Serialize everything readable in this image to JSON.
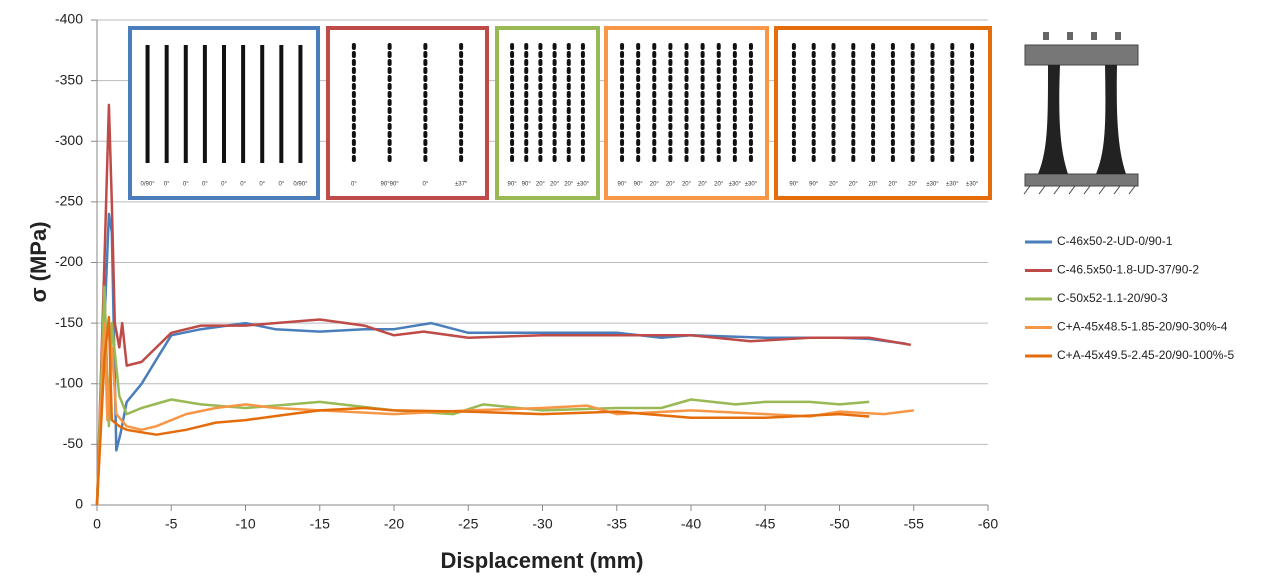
{
  "chart_data": {
    "type": "line",
    "xlabel": "Displacement (mm)",
    "ylabel": "σ  (MPa)",
    "xlim": [
      0,
      -60
    ],
    "ylim": [
      0,
      -400
    ],
    "xticks": [
      0,
      -5,
      -10,
      -15,
      -20,
      -25,
      -30,
      -35,
      -40,
      -45,
      -50,
      -55,
      -60
    ],
    "yticks": [
      0,
      -50,
      -100,
      -150,
      -200,
      -250,
      -300,
      -350,
      -400
    ],
    "grid": true,
    "legend": "right",
    "series": [
      {
        "name": "C-46x50-2-UD-0/90-1",
        "color": "#4a7ebb",
        "x": [
          0,
          -0.5,
          -0.8,
          -1,
          -1.3,
          -1.6,
          -2,
          -3,
          -4,
          -5,
          -7,
          -10,
          -12,
          -15,
          -18,
          -20,
          -22.5,
          -25,
          -30,
          -35,
          -38,
          -40,
          -45,
          -50,
          -52,
          -54.5
        ],
        "values": [
          0,
          -150,
          -240,
          -225,
          -45,
          -60,
          -85,
          -100,
          -120,
          -140,
          -145,
          -150,
          -145,
          -143,
          -145,
          -145,
          -150,
          -142,
          -142,
          -142,
          -138,
          -140,
          -138,
          -138,
          -137,
          -133
        ]
      },
      {
        "name": "C-46.5x50-1.8-UD-37/90-2",
        "color": "#be4b48",
        "x": [
          0,
          -0.5,
          -0.8,
          -1,
          -1.2,
          -1.5,
          -1.7,
          -2,
          -3,
          -4,
          -5,
          -7,
          -10,
          -12,
          -15,
          -18,
          -20,
          -22,
          -25,
          -30,
          -35,
          -40,
          -44,
          -48,
          -52,
          -54.8
        ],
        "values": [
          0,
          -200,
          -330,
          -250,
          -150,
          -130,
          -150,
          -115,
          -118,
          -130,
          -142,
          -148,
          -148,
          -150,
          -153,
          -148,
          -140,
          -143,
          -138,
          -140,
          -140,
          -140,
          -135,
          -138,
          -138,
          -132
        ]
      },
      {
        "name": "C-50x52-1.1-20/90-3",
        "color": "#98b954",
        "x": [
          0,
          -0.5,
          -0.8,
          -1,
          -1.5,
          -2,
          -3,
          -5,
          -7,
          -10,
          -12,
          -15,
          -20,
          -24,
          -26,
          -30,
          -35,
          -38,
          -40,
          -43,
          -45,
          -48,
          -50,
          -52
        ],
        "values": [
          0,
          -180,
          -65,
          -150,
          -90,
          -75,
          -80,
          -87,
          -83,
          -80,
          -82,
          -85,
          -78,
          -75,
          -83,
          -78,
          -80,
          -80,
          -87,
          -83,
          -85,
          -85,
          -83,
          -85
        ]
      },
      {
        "name": "C+A-45x48.5-1.85-20/90-30%-4",
        "color": "#f79646",
        "x": [
          0,
          -0.5,
          -0.7,
          -1,
          -1.3,
          -2,
          -3,
          -4,
          -6,
          -8,
          -10,
          -12,
          -15,
          -20,
          -25,
          -30,
          -33,
          -35,
          -40,
          -45,
          -48,
          -50,
          -53,
          -55
        ],
        "values": [
          0,
          -150,
          -70,
          -130,
          -75,
          -65,
          -62,
          -65,
          -75,
          -80,
          -83,
          -80,
          -78,
          -75,
          -78,
          -80,
          -82,
          -75,
          -78,
          -75,
          -73,
          -77,
          -75,
          -78
        ]
      },
      {
        "name": "C+A-45x49.5-2.45-20/90-100%-5",
        "color": "#e46c0a",
        "x": [
          0,
          -0.5,
          -0.8,
          -1,
          -1.5,
          -2,
          -3,
          -4,
          -6,
          -8,
          -10,
          -13,
          -15,
          -18,
          -20,
          -25,
          -30,
          -35,
          -40,
          -45,
          -50,
          -52
        ],
        "values": [
          0,
          -120,
          -155,
          -70,
          -65,
          -62,
          -60,
          -58,
          -62,
          -68,
          -70,
          -75,
          -78,
          -80,
          -78,
          -77,
          -75,
          -77,
          -72,
          -72,
          -75,
          -73
        ]
      }
    ],
    "inset_panels": [
      {
        "color": "#4a7ebb",
        "labels": [
          "0/90°",
          "0°",
          "0°",
          "0°",
          "0°",
          "0°",
          "0°",
          "0°",
          "0/90°"
        ]
      },
      {
        "color": "#be4b48",
        "labels": [
          "0°",
          "90°90°",
          "0°",
          "±37°"
        ]
      },
      {
        "color": "#98b954",
        "labels": [
          "90°",
          "90°",
          "20°",
          "20°",
          "20°",
          "±30°"
        ]
      },
      {
        "color": "#f79646",
        "labels": [
          "90°",
          "90°",
          "20°",
          "20°",
          "20°",
          "20°",
          "20°",
          "±30°",
          "±30°"
        ]
      },
      {
        "color": "#e46c0a",
        "labels": [
          "90°",
          "90°",
          "20°",
          "20°",
          "20°",
          "20°",
          "20°",
          "±30°",
          "±30°",
          "±30°"
        ]
      }
    ]
  }
}
